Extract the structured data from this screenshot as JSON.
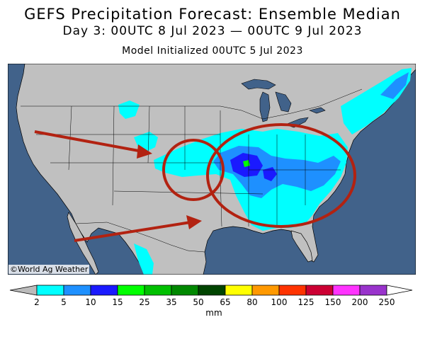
{
  "header": {
    "title": "GEFS Precipitation Forecast: Ensemble Median",
    "subtitle": "Day 3: 00UTC 8 Jul 2023 — 00UTC 9 Jul 2023",
    "init": "Model Initialized 00UTC 5 Jul 2023"
  },
  "credit": "©World Ag Weather",
  "legend": {
    "unit": "mm",
    "ticks": [
      "2",
      "5",
      "10",
      "15",
      "25",
      "35",
      "50",
      "65",
      "80",
      "100",
      "125",
      "150",
      "200",
      "250"
    ],
    "colors": [
      "#00ffff",
      "#1e90ff",
      "#1a1aff",
      "#00ff00",
      "#00c000",
      "#008800",
      "#004400",
      "#ffff00",
      "#ff9900",
      "#ff3300",
      "#cc0033",
      "#ff33ff",
      "#9933cc"
    ]
  },
  "colors": {
    "ocean": "#41628a",
    "land": "#c0c0c0",
    "annotation": "#b22211"
  }
}
